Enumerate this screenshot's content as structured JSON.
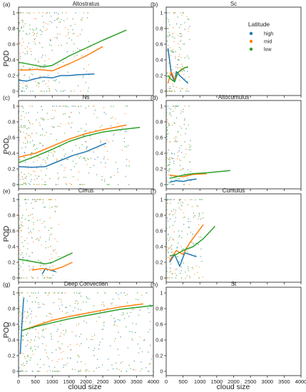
{
  "figure": {
    "ylabel": "POD",
    "xlabel": "cloud size",
    "legend": {
      "title": "Latitude",
      "placement": "top-right of panel (b)",
      "entries": [
        {
          "label": "high",
          "color": "#1f77b4"
        },
        {
          "label": "mid",
          "color": "#ff7f0e"
        },
        {
          "label": "low",
          "color": "#2ca02c"
        }
      ]
    },
    "yticks": [
      "0",
      "0.2",
      "0.4",
      "0.6",
      "0.8",
      "1"
    ],
    "xticks": [
      "0",
      "500",
      "1000",
      "1500",
      "2000",
      "2500",
      "3000",
      "3500",
      "4000"
    ]
  },
  "chart_data": [
    {
      "type": "scatter",
      "panel": "(a)",
      "title": "Altostratus",
      "xlim": [
        0,
        4000
      ],
      "ylim": [
        0,
        1
      ],
      "grid": false,
      "series": [
        {
          "name": "high",
          "color": "#1f77b4",
          "x": [
            0,
            250,
            500,
            750,
            1000,
            1250,
            1500,
            1750,
            2250
          ],
          "y": [
            0.14,
            0.13,
            0.16,
            0.18,
            0.17,
            0.2,
            0.2,
            0.21,
            0.22
          ]
        },
        {
          "name": "mid",
          "color": "#ff7f0e",
          "x": [
            0,
            250,
            500,
            750,
            1000,
            1500,
            2000,
            2500
          ],
          "y": [
            0.27,
            0.27,
            0.28,
            0.27,
            0.26,
            0.35,
            0.45,
            0.57
          ]
        },
        {
          "name": "low",
          "color": "#2ca02c",
          "x": [
            0,
            500,
            750,
            1000,
            1500,
            2000,
            2500,
            3200
          ],
          "y": [
            0.37,
            0.33,
            0.31,
            0.33,
            0.45,
            0.55,
            0.65,
            0.78
          ]
        }
      ]
    },
    {
      "type": "scatter",
      "panel": "(b)",
      "title": "Sc",
      "xlim": [
        0,
        4000
      ],
      "ylim": [
        0,
        1
      ],
      "grid": false,
      "series": [
        {
          "name": "high",
          "color": "#1f77b4",
          "x": [
            50,
            100,
            150,
            250,
            300,
            400,
            500,
            650
          ],
          "y": [
            0.55,
            0.4,
            0.22,
            0.12,
            0.25,
            0.2,
            0.16,
            0.1
          ]
        },
        {
          "name": "mid",
          "color": "#ff7f0e",
          "x": [
            50,
            150,
            250,
            350,
            450,
            550,
            650
          ],
          "y": [
            0.1,
            0.25,
            0.15,
            0.23,
            0.28,
            0.3,
            0.31
          ]
        },
        {
          "name": "low",
          "color": "#2ca02c",
          "x": [
            50,
            150,
            250,
            350,
            450,
            550,
            650
          ],
          "y": [
            0.2,
            0.15,
            0.12,
            0.24,
            0.27,
            0.3,
            0.31
          ]
        }
      ]
    },
    {
      "type": "scatter",
      "panel": "(c)",
      "title": "Ns",
      "xlim": [
        0,
        4000
      ],
      "ylim": [
        0,
        1
      ],
      "grid": false,
      "series": [
        {
          "name": "high",
          "color": "#1f77b4",
          "x": [
            0,
            400,
            800,
            1200,
            1600,
            2000,
            2600
          ],
          "y": [
            0.23,
            0.22,
            0.23,
            0.3,
            0.37,
            0.42,
            0.53
          ]
        },
        {
          "name": "mid",
          "color": "#ff7f0e",
          "x": [
            0,
            500,
            1000,
            1500,
            2000,
            2500,
            3200
          ],
          "y": [
            0.35,
            0.4,
            0.49,
            0.58,
            0.65,
            0.7,
            0.76
          ]
        },
        {
          "name": "low",
          "color": "#2ca02c",
          "x": [
            0,
            500,
            1000,
            1500,
            2000,
            2500,
            3000,
            3600
          ],
          "y": [
            0.28,
            0.36,
            0.45,
            0.55,
            0.62,
            0.67,
            0.7,
            0.73
          ]
        }
      ]
    },
    {
      "type": "scatter",
      "panel": "(d)",
      "title": "Altocumulus",
      "xlim": [
        0,
        4000
      ],
      "ylim": [
        0,
        1
      ],
      "grid": false,
      "series": [
        {
          "name": "high",
          "color": "#1f77b4",
          "x": [
            100,
            300,
            500,
            700,
            900
          ],
          "y": [
            0.03,
            0.05,
            0.04,
            0.06,
            0.07
          ]
        },
        {
          "name": "mid",
          "color": "#ff7f0e",
          "x": [
            100,
            300,
            500,
            800,
            1200
          ],
          "y": [
            0.12,
            0.11,
            0.1,
            0.13,
            0.14
          ]
        },
        {
          "name": "low",
          "color": "#2ca02c",
          "x": [
            100,
            300,
            500,
            800,
            1200,
            1900
          ],
          "y": [
            0.08,
            0.1,
            0.12,
            0.14,
            0.15,
            0.18
          ]
        }
      ]
    },
    {
      "type": "scatter",
      "panel": "(e)",
      "title": "Cirrus",
      "xlim": [
        0,
        4000
      ],
      "ylim": [
        0,
        1
      ],
      "grid": false,
      "series": [
        {
          "name": "high",
          "color": "#1f77b4",
          "x": [
            700,
            800,
            950,
            1100
          ],
          "y": [
            0.05,
            0.12,
            0.1,
            0.08
          ]
        },
        {
          "name": "mid",
          "color": "#ff7f0e",
          "x": [
            400,
            700,
            1000,
            1300,
            1600
          ],
          "y": [
            0.1,
            0.12,
            0.1,
            0.14,
            0.2
          ]
        },
        {
          "name": "low",
          "color": "#2ca02c",
          "x": [
            0,
            400,
            800,
            1000,
            1300,
            1600
          ],
          "y": [
            0.24,
            0.21,
            0.18,
            0.2,
            0.26,
            0.32
          ]
        }
      ]
    },
    {
      "type": "scatter",
      "panel": "(f)",
      "title": "Cumulus",
      "xlim": [
        0,
        4000
      ],
      "ylim": [
        0,
        1
      ],
      "grid": false,
      "series": [
        {
          "name": "high",
          "color": "#1f77b4",
          "x": [
            100,
            250,
            400,
            550,
            700,
            900
          ],
          "y": [
            0.2,
            0.3,
            0.15,
            0.32,
            0.3,
            0.27
          ]
        },
        {
          "name": "mid",
          "color": "#ff7f0e",
          "x": [
            100,
            300,
            500,
            700,
            1100
          ],
          "y": [
            0.22,
            0.35,
            0.3,
            0.45,
            0.68
          ]
        },
        {
          "name": "low",
          "color": "#2ca02c",
          "x": [
            100,
            300,
            500,
            800,
            1100,
            1450
          ],
          "y": [
            0.28,
            0.3,
            0.35,
            0.4,
            0.5,
            0.66
          ]
        }
      ]
    },
    {
      "type": "scatter",
      "panel": "(g)",
      "title": "Deep Convection",
      "xlim": [
        0,
        4000
      ],
      "ylim": [
        0,
        1
      ],
      "grid": false,
      "series": [
        {
          "name": "high",
          "color": "#1f77b4",
          "x": [
            50,
            100,
            150
          ],
          "y": [
            0.22,
            0.6,
            0.93
          ]
        },
        {
          "name": "mid",
          "color": "#ff7f0e",
          "x": [
            100,
            500,
            1000,
            1500,
            2000,
            2500,
            3000,
            3700
          ],
          "y": [
            0.52,
            0.58,
            0.65,
            0.7,
            0.74,
            0.78,
            0.82,
            0.86
          ]
        },
        {
          "name": "low",
          "color": "#2ca02c",
          "x": [
            100,
            500,
            1000,
            1500,
            2000,
            2500,
            3000,
            4000
          ],
          "y": [
            0.52,
            0.57,
            0.62,
            0.67,
            0.71,
            0.75,
            0.79,
            0.84
          ]
        }
      ]
    },
    {
      "type": "scatter",
      "panel": "(h)",
      "title": "St",
      "xlim": [
        0,
        4000
      ],
      "ylim": [
        0,
        1
      ],
      "grid": false,
      "series": []
    }
  ]
}
